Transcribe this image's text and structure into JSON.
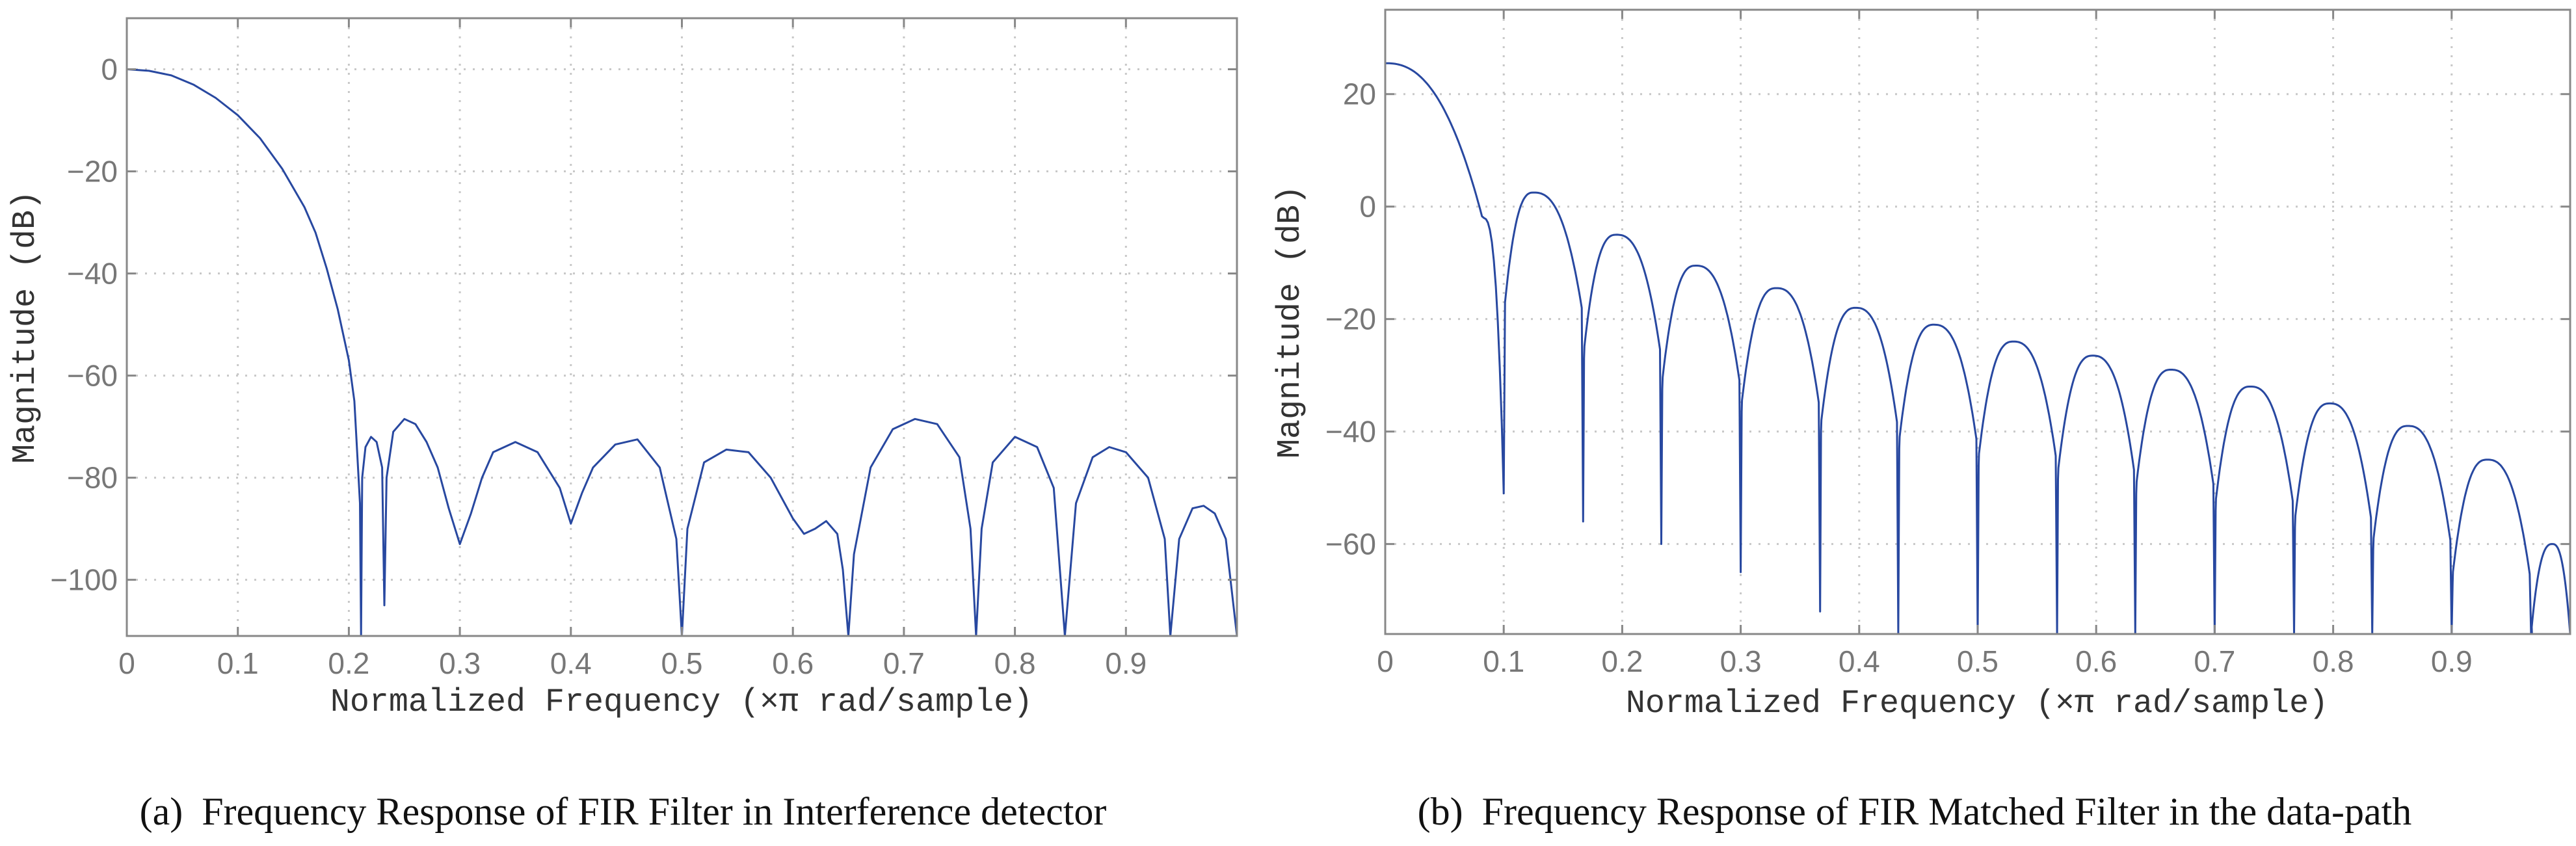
{
  "chart_data": [
    {
      "type": "line",
      "panel_label": "(a)",
      "title": "Frequency Response of FIR Filter in Interference detector",
      "xlabel": "Normalized Frequency (×π rad/sample)",
      "ylabel": "Magnitude (dB)",
      "xlim": [
        0,
        1
      ],
      "ylim": [
        -111,
        10
      ],
      "xticks": [
        0,
        0.1,
        0.2,
        0.3,
        0.4,
        0.5,
        0.6,
        0.7,
        0.8,
        0.9
      ],
      "xtick_labels": [
        "0",
        "0.1",
        "0.2",
        "0.3",
        "0.4",
        "0.5",
        "0.6",
        "0.7",
        "0.8",
        "0.9"
      ],
      "yticks": [
        0,
        -20,
        -40,
        -60,
        -80,
        -100
      ],
      "ytick_labels": [
        "0",
        "−20",
        "−40",
        "−60",
        "−80",
        "−100"
      ],
      "grid": true,
      "series": [
        {
          "name": "magnitude",
          "color": "#2848a0",
          "points": [
            [
              0,
              0
            ],
            [
              0.02,
              -0.3
            ],
            [
              0.04,
              -1.2
            ],
            [
              0.06,
              -3
            ],
            [
              0.08,
              -5.6
            ],
            [
              0.1,
              -9
            ],
            [
              0.12,
              -13.5
            ],
            [
              0.14,
              -19.5
            ],
            [
              0.16,
              -27
            ],
            [
              0.17,
              -32
            ],
            [
              0.18,
              -39
            ],
            [
              0.19,
              -47
            ],
            [
              0.2,
              -57
            ],
            [
              0.205,
              -65
            ],
            [
              0.21,
              -85
            ],
            [
              0.211,
              -111
            ],
            [
              0.212,
              -80
            ],
            [
              0.215,
              -74
            ],
            [
              0.22,
              -72
            ],
            [
              0.225,
              -73
            ],
            [
              0.23,
              -78
            ],
            [
              0.232,
              -105
            ],
            [
              0.234,
              -80
            ],
            [
              0.24,
              -71
            ],
            [
              0.25,
              -68.5
            ],
            [
              0.26,
              -69.5
            ],
            [
              0.27,
              -73
            ],
            [
              0.28,
              -78
            ],
            [
              0.29,
              -86
            ],
            [
              0.3,
              -93
            ],
            [
              0.31,
              -87
            ],
            [
              0.32,
              -80
            ],
            [
              0.33,
              -75
            ],
            [
              0.35,
              -73
            ],
            [
              0.37,
              -75
            ],
            [
              0.39,
              -82
            ],
            [
              0.4,
              -89
            ],
            [
              0.41,
              -83
            ],
            [
              0.42,
              -78
            ],
            [
              0.44,
              -73.5
            ],
            [
              0.46,
              -72.5
            ],
            [
              0.48,
              -78
            ],
            [
              0.495,
              -92
            ],
            [
              0.5,
              -111
            ],
            [
              0.505,
              -90
            ],
            [
              0.52,
              -77
            ],
            [
              0.54,
              -74.5
            ],
            [
              0.56,
              -75
            ],
            [
              0.58,
              -80
            ],
            [
              0.6,
              -88
            ],
            [
              0.61,
              -91
            ],
            [
              0.62,
              -90
            ],
            [
              0.63,
              -88.5
            ],
            [
              0.64,
              -91
            ],
            [
              0.645,
              -98
            ],
            [
              0.65,
              -111
            ],
            [
              0.655,
              -95
            ],
            [
              0.67,
              -78
            ],
            [
              0.69,
              -70.5
            ],
            [
              0.71,
              -68.5
            ],
            [
              0.73,
              -69.5
            ],
            [
              0.75,
              -76
            ],
            [
              0.76,
              -90
            ],
            [
              0.765,
              -111
            ],
            [
              0.77,
              -90
            ],
            [
              0.78,
              -77
            ],
            [
              0.8,
              -72
            ],
            [
              0.82,
              -74
            ],
            [
              0.835,
              -82
            ],
            [
              0.845,
              -111
            ],
            [
              0.855,
              -85
            ],
            [
              0.87,
              -76
            ],
            [
              0.885,
              -74
            ],
            [
              0.9,
              -75
            ],
            [
              0.92,
              -80
            ],
            [
              0.935,
              -92
            ],
            [
              0.94,
              -111
            ],
            [
              0.948,
              -92
            ],
            [
              0.96,
              -86
            ],
            [
              0.97,
              -85.5
            ],
            [
              0.98,
              -87
            ],
            [
              0.99,
              -92
            ],
            [
              1.0,
              -111
            ]
          ]
        }
      ]
    },
    {
      "type": "line",
      "panel_label": "(b)",
      "title": "Frequency Response of FIR Matched Filter in the data-path",
      "xlabel": "Normalized Frequency (×π rad/sample)",
      "ylabel": "Magnitude (dB)",
      "xlim": [
        0,
        1
      ],
      "ylim": [
        -76,
        35
      ],
      "xticks": [
        0,
        0.1,
        0.2,
        0.3,
        0.4,
        0.5,
        0.6,
        0.7,
        0.8,
        0.9
      ],
      "xtick_labels": [
        "0",
        "0.1",
        "0.2",
        "0.3",
        "0.4",
        "0.5",
        "0.6",
        "0.7",
        "0.8",
        "0.9"
      ],
      "yticks": [
        20,
        0,
        -20,
        -40,
        -60
      ],
      "ytick_labels": [
        "20",
        "0",
        "−20",
        "−40",
        "−60"
      ],
      "grid": true,
      "series": [
        {
          "name": "magnitude",
          "color": "#2848a0",
          "peak_db": 25.5,
          "nulls": [
            {
              "f": 0.1,
              "depth": -51
            },
            {
              "f": 0.167,
              "depth": -56
            },
            {
              "f": 0.233,
              "depth": -60
            },
            {
              "f": 0.3,
              "depth": -65
            },
            {
              "f": 0.367,
              "depth": -72
            },
            {
              "f": 0.433,
              "depth": -76
            },
            {
              "f": 0.5,
              "depth": -76
            },
            {
              "f": 0.567,
              "depth": -76
            },
            {
              "f": 0.633,
              "depth": -76
            },
            {
              "f": 0.7,
              "depth": -76
            },
            {
              "f": 0.767,
              "depth": -76
            },
            {
              "f": 0.833,
              "depth": -76
            },
            {
              "f": 0.9,
              "depth": -76
            },
            {
              "f": 0.967,
              "depth": -76
            },
            {
              "f": 1.0,
              "depth": -76
            }
          ],
          "lobe_peaks": [
            {
              "f": 0.125,
              "db": 2.5
            },
            {
              "f": 0.195,
              "db": -5
            },
            {
              "f": 0.262,
              "db": -10.5
            },
            {
              "f": 0.33,
              "db": -14.5
            },
            {
              "f": 0.397,
              "db": -18
            },
            {
              "f": 0.463,
              "db": -21
            },
            {
              "f": 0.53,
              "db": -24
            },
            {
              "f": 0.597,
              "db": -26.5
            },
            {
              "f": 0.663,
              "db": -29
            },
            {
              "f": 0.73,
              "db": -32
            },
            {
              "f": 0.797,
              "db": -35
            },
            {
              "f": 0.863,
              "db": -39
            },
            {
              "f": 0.93,
              "db": -45
            },
            {
              "f": 0.985,
              "db": -60
            }
          ]
        }
      ]
    }
  ],
  "captions": [
    {
      "label": "(a)",
      "text": "Frequency Response of FIR Filter in Interference detector"
    },
    {
      "label": "(b)",
      "text": "Frequency Response of FIR Matched Filter in the data-path"
    }
  ]
}
